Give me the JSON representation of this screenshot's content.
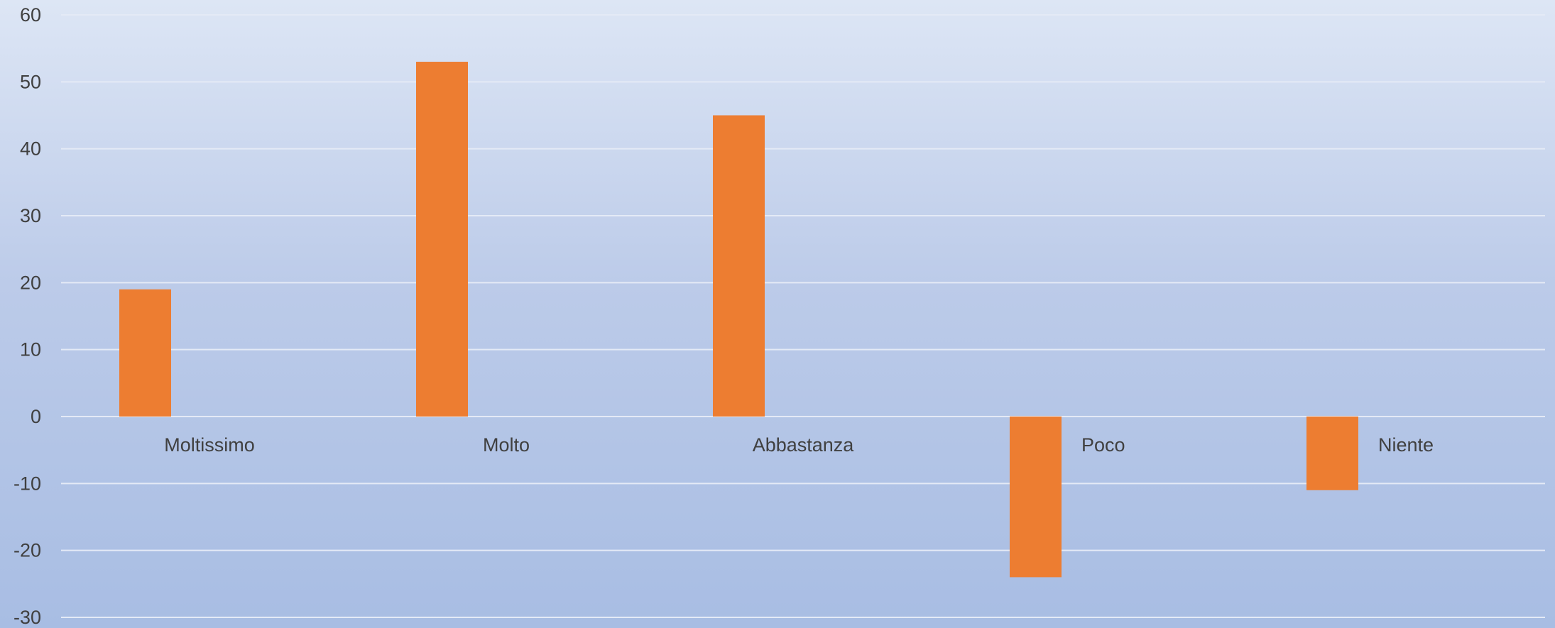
{
  "chart_data": {
    "type": "bar",
    "categories": [
      "Moltissimo",
      "Molto",
      "Abbastanza",
      "Poco",
      "Niente"
    ],
    "values": [
      19,
      53,
      45,
      -24,
      -11
    ],
    "title": "",
    "xlabel": "",
    "ylabel": "",
    "ylim": [
      -30,
      60
    ],
    "yticks": [
      "60",
      "50",
      "40",
      "30",
      "20",
      "10",
      "0",
      "-10",
      "-20",
      "-30"
    ],
    "grid": true,
    "legend": "none",
    "bar_color": "#ed7d31",
    "gridline_color": "#e4eaf6",
    "text_color": "#404040"
  }
}
